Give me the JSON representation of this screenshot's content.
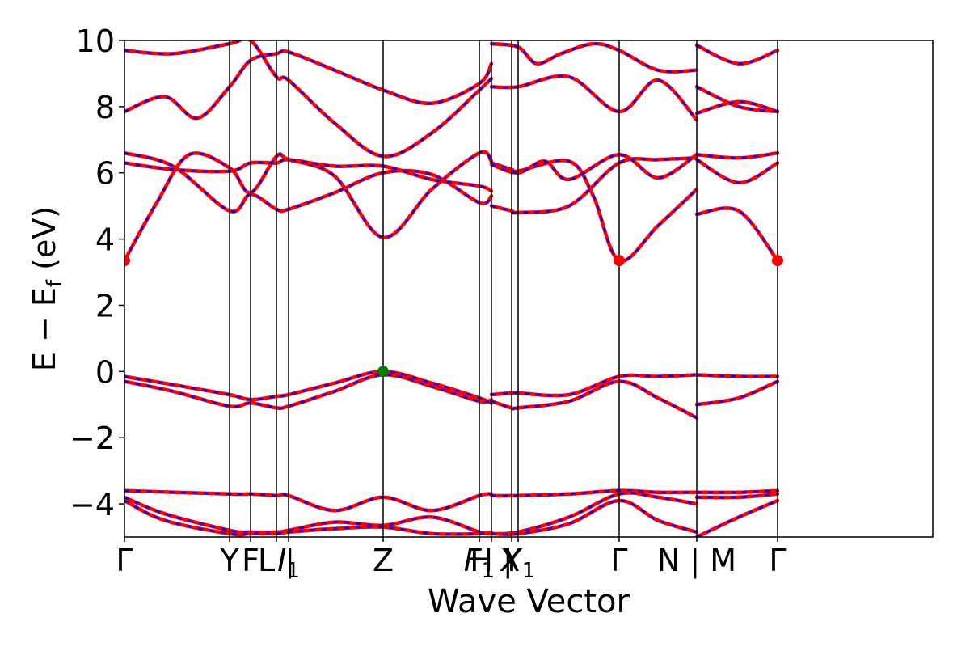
{
  "chart_data": {
    "type": "line",
    "xlabel": "Wave Vector",
    "ylabel": "E − E",
    "ylabel_sub": "f",
    "ylabel_unit": " (eV)",
    "ylim": [
      -5,
      10
    ],
    "yticks": [
      -4,
      -2,
      0,
      2,
      4,
      6,
      8,
      10
    ],
    "ytick_labels": [
      "−4",
      "−2",
      "0",
      "2",
      "4",
      "6",
      "8",
      "10"
    ],
    "xlim": [
      0,
      100
    ],
    "kpoints": [
      {
        "label": "Γ",
        "sub": "",
        "x": 0
      },
      {
        "label": "Y",
        "sub": "",
        "x": 13.0
      },
      {
        "label": "F",
        "sub": "",
        "x": 15.6
      },
      {
        "label": "L",
        "sub": "",
        "x": 18.8
      },
      {
        "label": "|",
        "sub": "",
        "x": 18.8
      },
      {
        "label": "I",
        "sub": "1",
        "x": 20.3
      },
      {
        "label": "Z",
        "sub": "",
        "x": 32.0
      },
      {
        "label": "F",
        "sub": "1",
        "x": 43.9
      },
      {
        "label": "H",
        "sub": "",
        "x": 45.4
      },
      {
        "label": "|",
        "sub": "",
        "x": 45.4
      },
      {
        "label": "Y",
        "sub": "",
        "x": 47.9
      },
      {
        "label": "X",
        "sub": "1",
        "x": 48.7
      },
      {
        "label": "Γ",
        "sub": "",
        "x": 61.2
      },
      {
        "label": "N",
        "sub": "",
        "x": 70.8
      },
      {
        "label": "|",
        "sub": "",
        "x": 70.8
      },
      {
        "label": "M",
        "sub": "",
        "x": 70.8
      },
      {
        "label": "Γ",
        "sub": "",
        "x": 80.8
      }
    ],
    "line_colors": {
      "band_primary": "#ff0000",
      "band_overlay": "#0000ff",
      "vlines": "#000000"
    },
    "series": [
      {
        "x": [
          0,
          6,
          13,
          15.6,
          18.8,
          20.3,
          26,
          32,
          38,
          43.9,
          45.4
        ],
        "y": [
          -0.15,
          -0.4,
          -0.7,
          -0.85,
          -0.75,
          -0.7,
          -0.35,
          0.0,
          -0.35,
          -0.8,
          -0.95
        ]
      },
      {
        "x": [
          0,
          6,
          13,
          15.6,
          18.8,
          20.3,
          26,
          32,
          38,
          43.9,
          45.4
        ],
        "y": [
          -0.3,
          -0.6,
          -1.05,
          -0.95,
          -1.1,
          -1.05,
          -0.6,
          -0.1,
          -0.45,
          -0.9,
          -0.85
        ]
      },
      {
        "x": [
          45.4,
          47.9,
          48.7,
          55,
          61.2,
          66,
          70.8
        ],
        "y": [
          -0.7,
          -0.65,
          -0.65,
          -0.7,
          -0.15,
          -0.15,
          -0.1
        ]
      },
      {
        "x": [
          45.4,
          47.9,
          48.7,
          55,
          61.2,
          66,
          70.8
        ],
        "y": [
          -0.9,
          -1.1,
          -1.1,
          -0.9,
          -0.3,
          -0.8,
          -1.4
        ]
      },
      {
        "x": [
          70.8,
          76,
          80.8
        ],
        "y": [
          -0.1,
          -0.15,
          -0.15
        ]
      },
      {
        "x": [
          70.8,
          76,
          80.8
        ],
        "y": [
          -1.0,
          -0.8,
          -0.3
        ]
      },
      {
        "x": [
          0,
          13,
          15.6,
          18.8,
          20.3,
          26,
          32,
          38,
          43.9,
          45.4
        ],
        "y": [
          -3.6,
          -3.7,
          -3.7,
          -3.75,
          -3.75,
          -4.2,
          -3.8,
          -4.2,
          -3.75,
          -3.7
        ]
      },
      {
        "x": [
          0,
          5,
          13,
          15.6,
          18.8,
          20.3,
          26,
          32,
          38,
          43.9,
          45.4
        ],
        "y": [
          -3.8,
          -4.3,
          -4.8,
          -4.85,
          -4.85,
          -4.8,
          -4.55,
          -4.65,
          -4.4,
          -4.85,
          -4.9
        ]
      },
      {
        "x": [
          0,
          5,
          13,
          15.6,
          18.8,
          20.3,
          26,
          32,
          38,
          43.9,
          45.4
        ],
        "y": [
          -3.9,
          -4.5,
          -4.9,
          -4.9,
          -4.9,
          -4.85,
          -4.75,
          -4.7,
          -4.9,
          -4.9,
          -4.85
        ]
      },
      {
        "x": [
          45.4,
          48.7,
          55,
          61.2,
          66,
          70.8
        ],
        "y": [
          -3.75,
          -3.75,
          -3.7,
          -3.6,
          -3.65,
          -3.65
        ]
      },
      {
        "x": [
          45.4,
          48.7,
          55,
          61.2,
          66,
          70.8
        ],
        "y": [
          -4.9,
          -4.85,
          -4.4,
          -3.7,
          -3.8,
          -4.0
        ]
      },
      {
        "x": [
          45.4,
          48.7,
          55,
          61.2,
          66,
          70.8
        ],
        "y": [
          -4.9,
          -4.9,
          -4.6,
          -3.9,
          -4.5,
          -4.85
        ]
      },
      {
        "x": [
          70.8,
          76,
          80.8
        ],
        "y": [
          -3.65,
          -3.65,
          -3.6
        ]
      },
      {
        "x": [
          70.8,
          76,
          80.8
        ],
        "y": [
          -3.8,
          -3.8,
          -3.7
        ]
      },
      {
        "x": [
          70.8,
          76,
          80.8
        ],
        "y": [
          -5.0,
          -4.4,
          -3.9
        ]
      },
      {
        "x": [
          0,
          4,
          8,
          13,
          15.6,
          18.8,
          20.3,
          26,
          32,
          38,
          43.9,
          45.4
        ],
        "y": [
          3.35,
          5.1,
          6.55,
          6.15,
          5.4,
          6.5,
          6.4,
          5.9,
          4.05,
          5.5,
          6.6,
          6.35
        ]
      },
      {
        "x": [
          0,
          6,
          13,
          15.6,
          18.8,
          20.3,
          26,
          32,
          38,
          43.9,
          45.4
        ],
        "y": [
          6.6,
          6.2,
          4.85,
          5.35,
          4.9,
          4.9,
          5.4,
          6.0,
          5.95,
          5.1,
          5.3
        ]
      },
      {
        "x": [
          0,
          6,
          13,
          15.6,
          18.8,
          20.3,
          26,
          32,
          38,
          43.9,
          45.4
        ],
        "y": [
          6.3,
          6.1,
          6.05,
          6.3,
          6.3,
          6.4,
          6.2,
          6.2,
          5.8,
          5.6,
          5.45
        ]
      },
      {
        "x": [
          45.4,
          47.9,
          48.7,
          55,
          58,
          61.2,
          66,
          70.8
        ],
        "y": [
          6.3,
          6.1,
          6.05,
          6.35,
          5.3,
          3.35,
          4.4,
          5.5
        ]
      },
      {
        "x": [
          45.4,
          47.9,
          48.7,
          55,
          61.2,
          66,
          70.8
        ],
        "y": [
          5.0,
          4.85,
          4.8,
          5.0,
          6.3,
          6.4,
          6.45
        ]
      },
      {
        "x": [
          45.4,
          48.7,
          52,
          55,
          61.2,
          66,
          70.8
        ],
        "y": [
          6.25,
          6.0,
          6.35,
          5.8,
          6.55,
          5.85,
          6.55
        ]
      },
      {
        "x": [
          70.8,
          76,
          80.8
        ],
        "y": [
          4.75,
          4.85,
          3.35
        ]
      },
      {
        "x": [
          70.8,
          76,
          80.8
        ],
        "y": [
          6.55,
          6.45,
          6.6
        ]
      },
      {
        "x": [
          70.8,
          76,
          80.8
        ],
        "y": [
          6.4,
          5.7,
          6.3
        ]
      },
      {
        "x": [
          0,
          5,
          9,
          13,
          15.6,
          18.8,
          20.3,
          26,
          32,
          38,
          43.9,
          45.4
        ],
        "y": [
          7.85,
          8.3,
          7.65,
          8.6,
          9.4,
          9.6,
          9.65,
          9.1,
          8.5,
          8.1,
          8.7,
          9.3
        ]
      },
      {
        "x": [
          0,
          6,
          13,
          15.6,
          18.8,
          20.3,
          26,
          32,
          38,
          43.9,
          45.4
        ],
        "y": [
          9.7,
          9.6,
          9.9,
          10.0,
          8.9,
          8.8,
          7.5,
          6.5,
          7.2,
          8.5,
          8.85
        ]
      },
      {
        "x": [
          45.4,
          48.7,
          55,
          61.2,
          66,
          70.8
        ],
        "y": [
          8.6,
          8.6,
          8.9,
          7.85,
          8.8,
          7.6
        ]
      },
      {
        "x": [
          45.4,
          48.7,
          51,
          54,
          58,
          61.2,
          66,
          70.8
        ],
        "y": [
          9.9,
          9.8,
          9.3,
          9.6,
          9.9,
          9.7,
          9.1,
          9.1
        ]
      },
      {
        "x": [
          70.8,
          76,
          80.8
        ],
        "y": [
          8.6,
          8.0,
          7.85
        ]
      },
      {
        "x": [
          70.8,
          76,
          80.8
        ],
        "y": [
          7.8,
          8.15,
          7.85
        ]
      },
      {
        "x": [
          70.8,
          76,
          80.8
        ],
        "y": [
          9.85,
          9.3,
          9.7
        ]
      }
    ],
    "markers": [
      {
        "x": 0,
        "y": 3.35,
        "color": "#ff0000"
      },
      {
        "x": 61.2,
        "y": 3.35,
        "color": "#ff0000"
      },
      {
        "x": 80.8,
        "y": 3.35,
        "color": "#ff0000"
      },
      {
        "x": 32.0,
        "y": 0.0,
        "color": "#008000"
      }
    ]
  }
}
